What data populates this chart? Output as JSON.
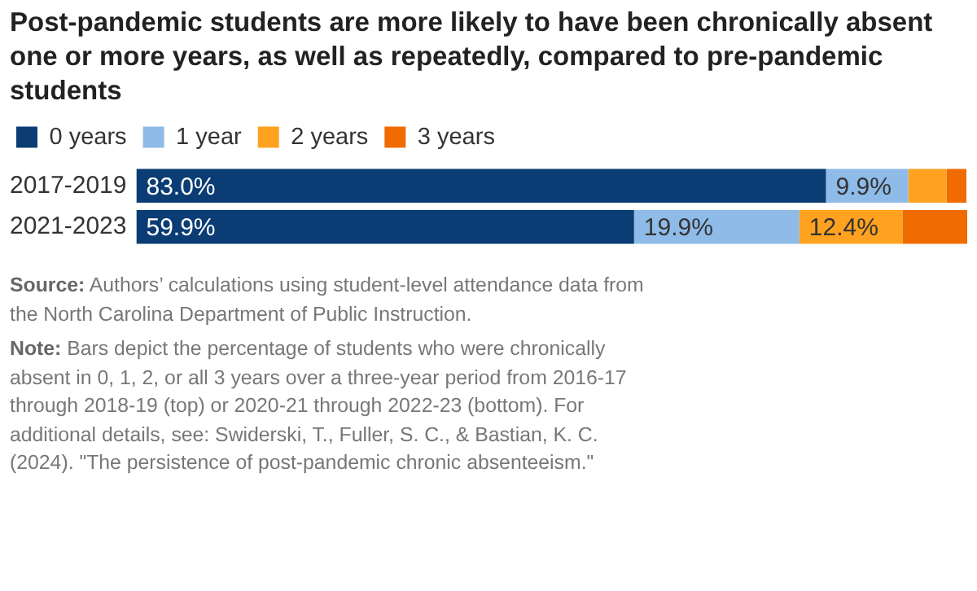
{
  "chart_data": {
    "type": "bar",
    "orientation": "horizontal",
    "stacked": true,
    "title": "Post-pandemic students are more likely to have been chronically absent one or more years, as well as repeatedly, compared to pre-pandemic students",
    "categories": [
      "2017-2019",
      "2021-2023"
    ],
    "series": [
      {
        "name": "0 years",
        "color": "#0b3c73",
        "values": [
          83.0,
          59.9
        ],
        "value_labels": [
          "83.0%",
          "59.9%"
        ]
      },
      {
        "name": "1 year",
        "color": "#8fbbe8",
        "values": [
          9.9,
          19.9
        ],
        "value_labels": [
          "9.9%",
          "19.9%"
        ]
      },
      {
        "name": "2 years",
        "color": "#ffa21f",
        "values": [
          4.6,
          12.4
        ],
        "value_labels": [
          null,
          "12.4%"
        ]
      },
      {
        "name": "3 years",
        "color": "#f06b00",
        "values": [
          2.4,
          7.8
        ],
        "value_labels": [
          null,
          null
        ]
      }
    ],
    "legend": "top left",
    "grid": false,
    "tick_labels": "y",
    "annotations": [
      "Source: Authors’ calculations using student-level attendance data from the North Carolina Department of Public Instruction.",
      "Note: Bars depict the percentage of students who were chronically absent in 0, 1, 2, or all 3 years over a three-year period from 2016-17 through 2018-19 (top) or 2020-21 through 2022-23 (bottom). For additional details, see: Swiderski, T., Fuller, S. C., & Bastian, K. C. (2024). \"The persistence of post-pandemic chronic absenteeism.\""
    ]
  }
}
